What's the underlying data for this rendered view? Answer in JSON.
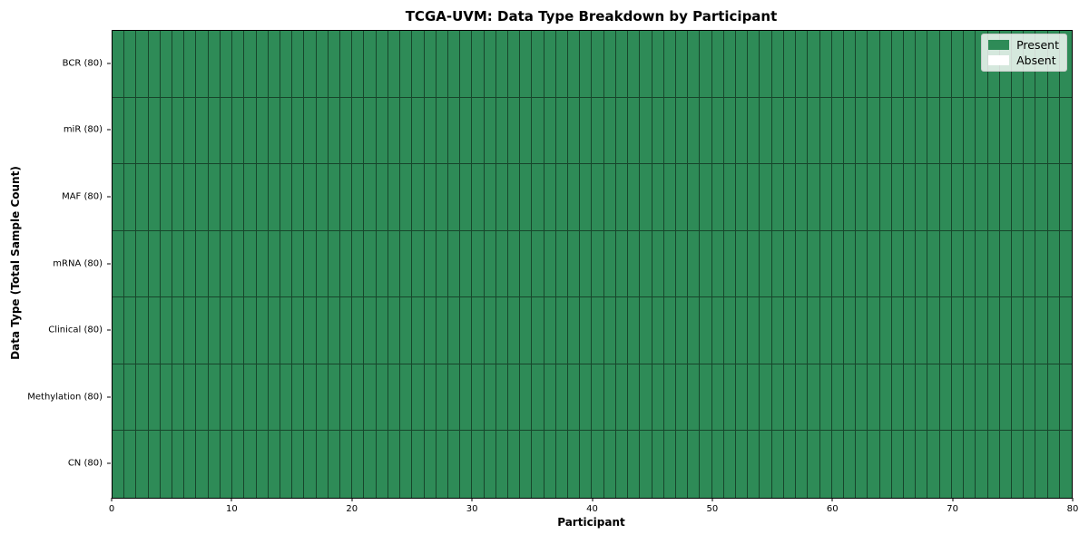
{
  "chart_data": {
    "type": "heatmap",
    "title": "TCGA-UVM: Data Type Breakdown by Participant",
    "xlabel": "Participant",
    "ylabel": "Data Type (Total Sample Count)",
    "xlim": [
      0,
      80
    ],
    "x_ticks": [
      0,
      10,
      20,
      30,
      40,
      50,
      60,
      70,
      80
    ],
    "participants": 80,
    "rows": [
      {
        "name": "BCR",
        "label": "BCR (80)",
        "total": 80,
        "present_count": 80
      },
      {
        "name": "miR",
        "label": "miR (80)",
        "total": 80,
        "present_count": 80
      },
      {
        "name": "MAF",
        "label": "MAF (80)",
        "total": 80,
        "present_count": 80
      },
      {
        "name": "mRNA",
        "label": "mRNA (80)",
        "total": 80,
        "present_count": 80
      },
      {
        "name": "Clinical",
        "label": "Clinical (80)",
        "total": 80,
        "present_count": 80
      },
      {
        "name": "Methylation",
        "label": "Methylation (80)",
        "total": 80,
        "present_count": 80
      },
      {
        "name": "CN",
        "label": "CN (80)",
        "total": 80,
        "present_count": 80
      }
    ],
    "legend": {
      "position": "upper right",
      "entries": [
        {
          "label": "Present",
          "color": "#2e8b57"
        },
        {
          "label": "Absent",
          "color": "#ffffff"
        }
      ]
    },
    "colors": {
      "present": "#2e8b57",
      "absent": "#ffffff",
      "cell_edge": "rgba(0,0,0,0.50)",
      "spine": "#000000",
      "legend_border": "#cccccc"
    },
    "grid": false
  }
}
